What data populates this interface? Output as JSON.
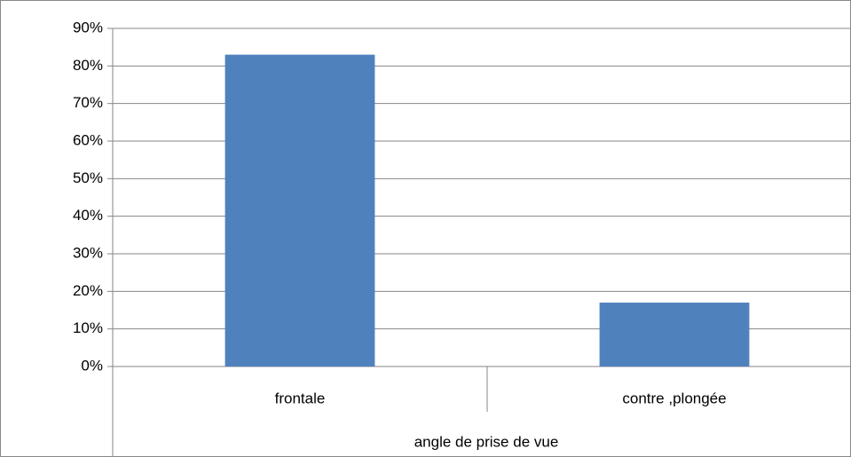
{
  "chart_data": {
    "type": "bar",
    "x_label": "angle de prise de vue",
    "categories": [
      "frontale",
      "contre ,plongée"
    ],
    "values": [
      83,
      17
    ],
    "color": "#4f81bd",
    "ylim": [
      0,
      90
    ],
    "yticks": [
      {
        "value": 0,
        "label": "0%"
      },
      {
        "value": 10,
        "label": "10%"
      },
      {
        "value": 20,
        "label": "20%"
      },
      {
        "value": 30,
        "label": "30%"
      },
      {
        "value": 40,
        "label": "40%"
      },
      {
        "value": 50,
        "label": "50%"
      },
      {
        "value": 60,
        "label": "60%"
      },
      {
        "value": 70,
        "label": "70%"
      },
      {
        "value": 80,
        "label": "80%"
      },
      {
        "value": 90,
        "label": "90%"
      }
    ],
    "grid": true
  }
}
